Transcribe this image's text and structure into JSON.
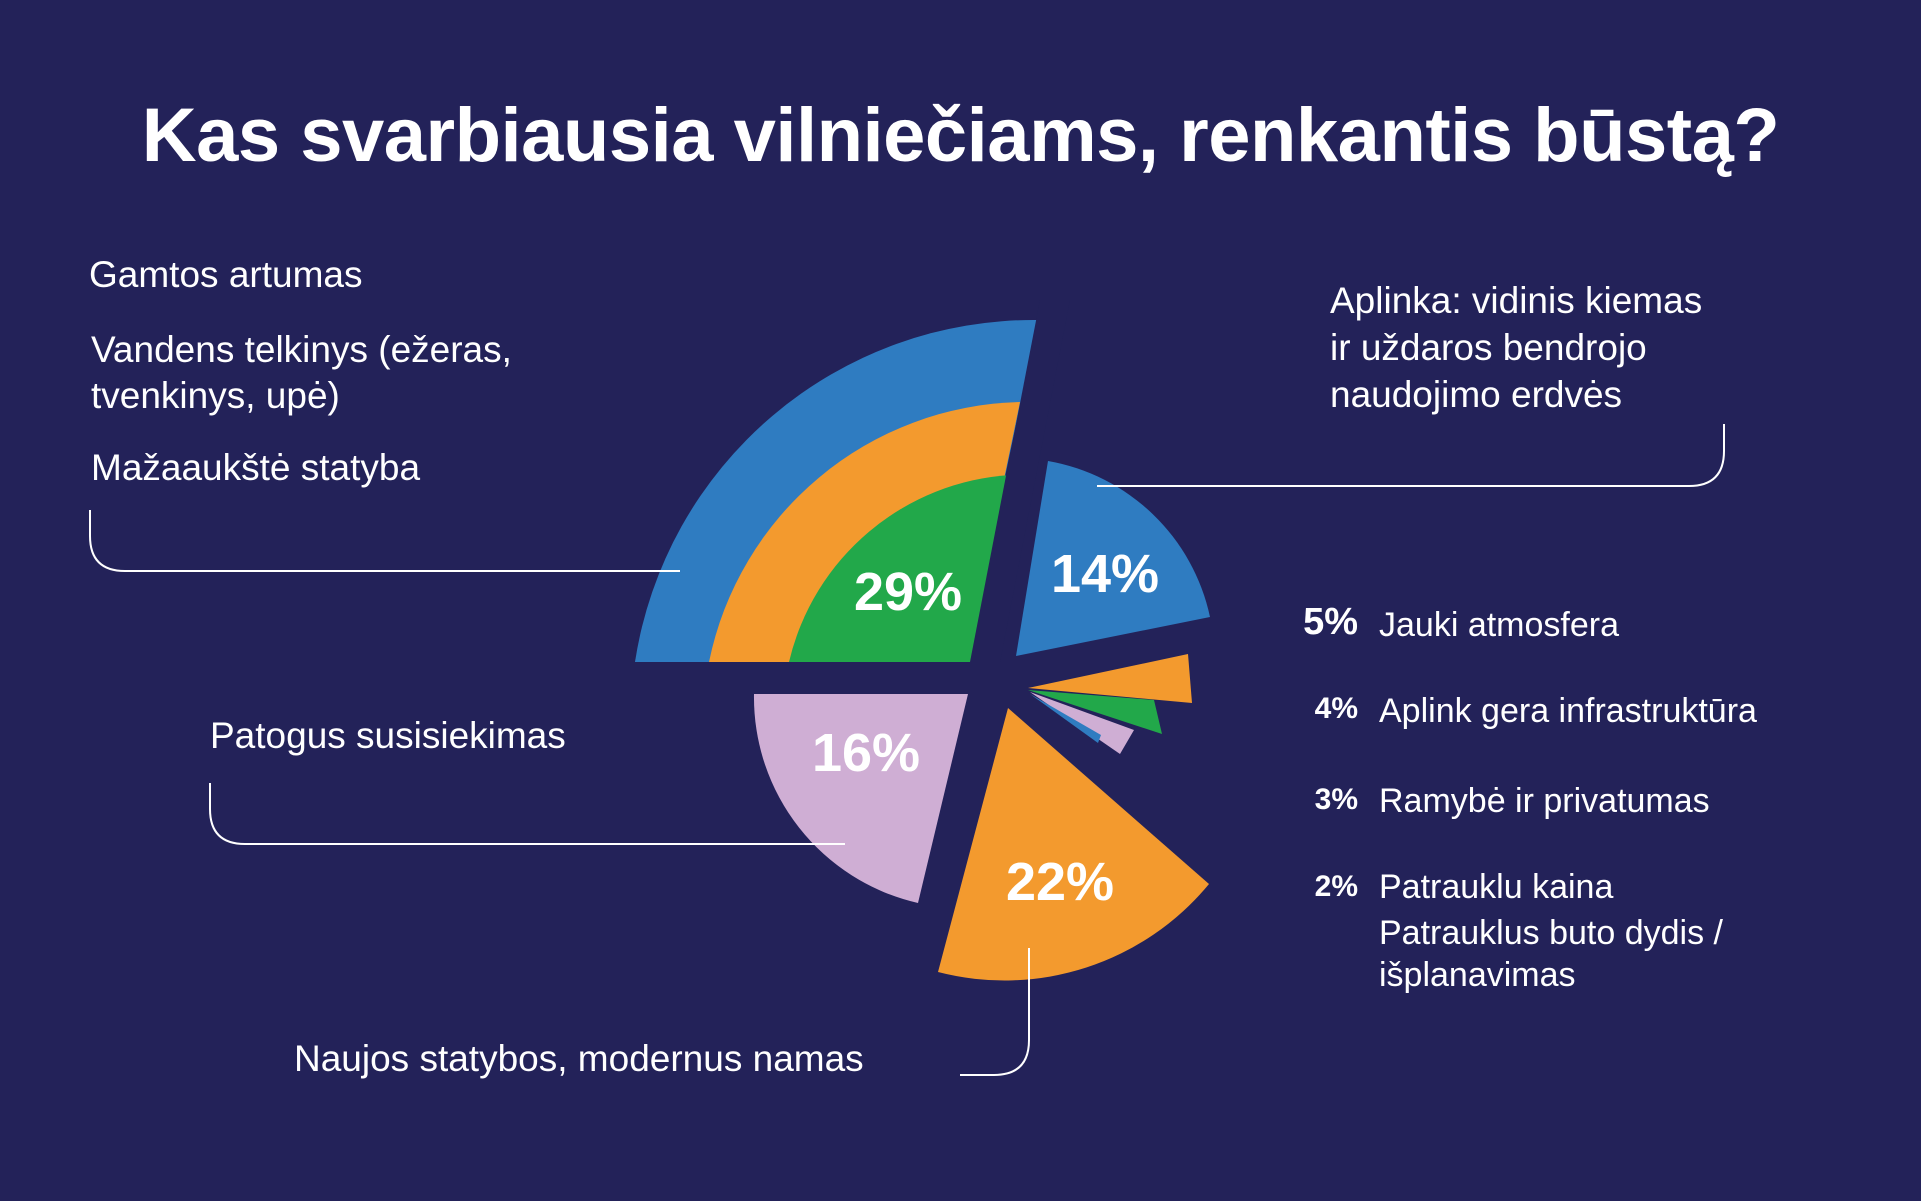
{
  "title": "Kas svarbiausia vilniečiams, renkantis būstą?",
  "labels": {
    "nature": "Gamtos artumas",
    "water_line1": "Vandens telkinys (ežeras,",
    "water_line2": "tvenkinys, upė)",
    "lowrise": "Mažaaukštė statyba",
    "courtyard_line1": "Aplinka: vidinis kiemas",
    "courtyard_line2": "ir uždaros bendrojo",
    "courtyard_line3": "naudojimo erdvės",
    "transport": "Patogus susisiekimas",
    "newbuild": "Naujos statybos, modernus namas"
  },
  "side_legend": [
    {
      "pct": "5%",
      "label": "Jauki atmosfera"
    },
    {
      "pct": "4%",
      "label": "Aplink gera infrastruktūra"
    },
    {
      "pct": "3%",
      "label": "Ramybė ir privatumas"
    },
    {
      "pct": "2%",
      "label_line1": "Patrauklu kaina",
      "label_line2": "Patrauklus buto dydis /",
      "label_line3": "išplanavimas"
    }
  ],
  "colors": {
    "background": "#232259",
    "blue": "#2f7cc1",
    "orange": "#f39a2e",
    "green": "#22a84a",
    "lilac": "#cfaed4",
    "text": "#ffffff"
  },
  "chart_data": {
    "type": "pie",
    "title": "Kas svarbiausia vilniečiams, renkantis būstą?",
    "slices": [
      {
        "label": "Gamtos artumas / Vandens telkinys (ežeras, tvenkinys, upė) / Mažaaukštė statyba",
        "value": 29,
        "display": "29%"
      },
      {
        "label": "Aplinka: vidinis kiemas ir uždaros bendrojo naudojimo erdvės",
        "value": 14,
        "display": "14%"
      },
      {
        "label": "Jauki atmosfera",
        "value": 5,
        "display": "5%"
      },
      {
        "label": "Aplink gera infrastruktūra",
        "value": 4,
        "display": "4%"
      },
      {
        "label": "Ramybė ir privatumas",
        "value": 3,
        "display": "3%"
      },
      {
        "label": "Patrauklu kaina; Patrauklus buto dydis / išplanavimas",
        "value": 2,
        "display": "2%"
      },
      {
        "label": "Naujos statybos, modernus namas",
        "value": 22,
        "display": "22%"
      },
      {
        "label": "Patogus susisiekimas",
        "value": 16,
        "display": "16%"
      }
    ]
  }
}
